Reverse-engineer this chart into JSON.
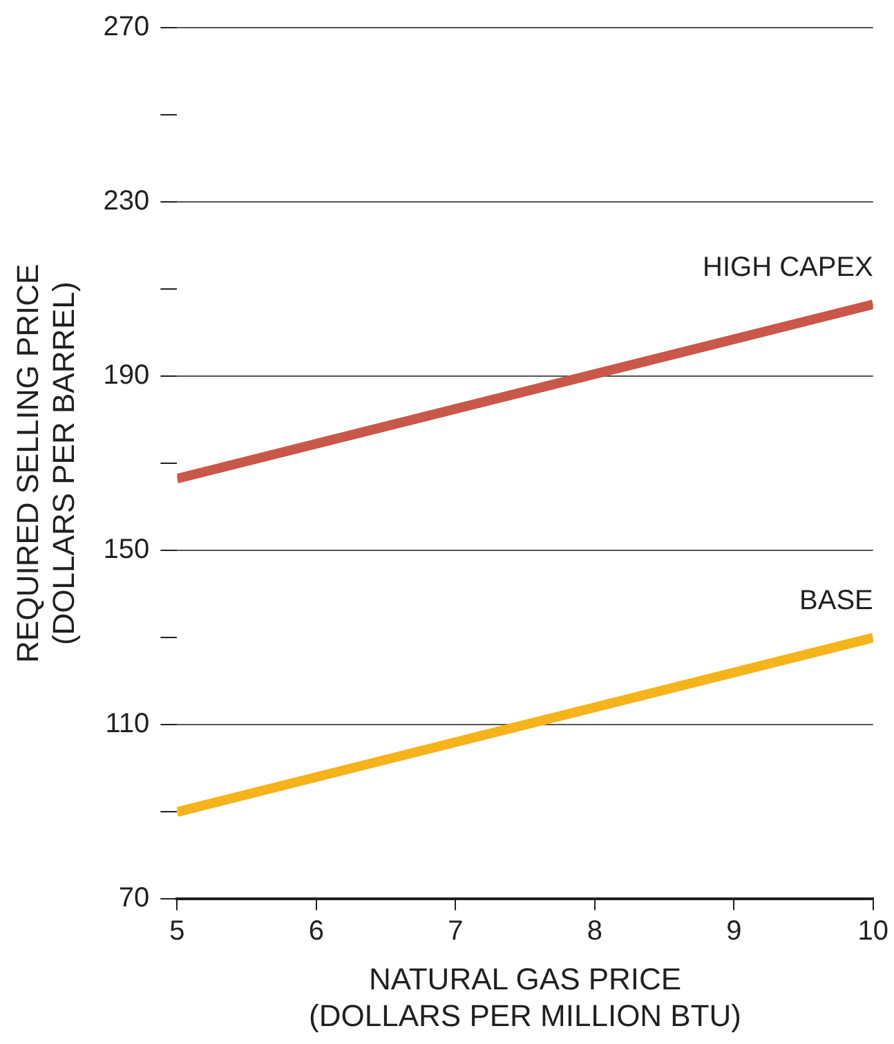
{
  "chart_data": {
    "type": "line",
    "xlabel": "NATURAL GAS PRICE\n(DOLLARS PER MILLION BTU)",
    "ylabel": "REQUIRED SELLING PRICE\n(DOLLARS PER BARREL)",
    "x": [
      5,
      10
    ],
    "series": [
      {
        "name": "HIGH CAPEX",
        "color": "#c9574a",
        "values": [
          166.5,
          206.5
        ]
      },
      {
        "name": "BASE",
        "color": "#f6b41c",
        "values": [
          90,
          130
        ]
      }
    ],
    "xlim": [
      5,
      10
    ],
    "xticks": [
      5,
      6,
      7,
      8,
      9,
      10
    ],
    "ylim": [
      70,
      270
    ],
    "yticks": [
      70,
      {
        "value": 90,
        "label": null
      },
      110,
      {
        "value": 130,
        "label": null
      },
      150,
      {
        "value": 170,
        "label": null
      },
      190,
      {
        "value": 210,
        "label": null
      },
      230,
      {
        "value": 250,
        "label": null
      },
      270
    ],
    "grid": "y",
    "legend": false,
    "marker": "none",
    "line_style": "solid"
  }
}
